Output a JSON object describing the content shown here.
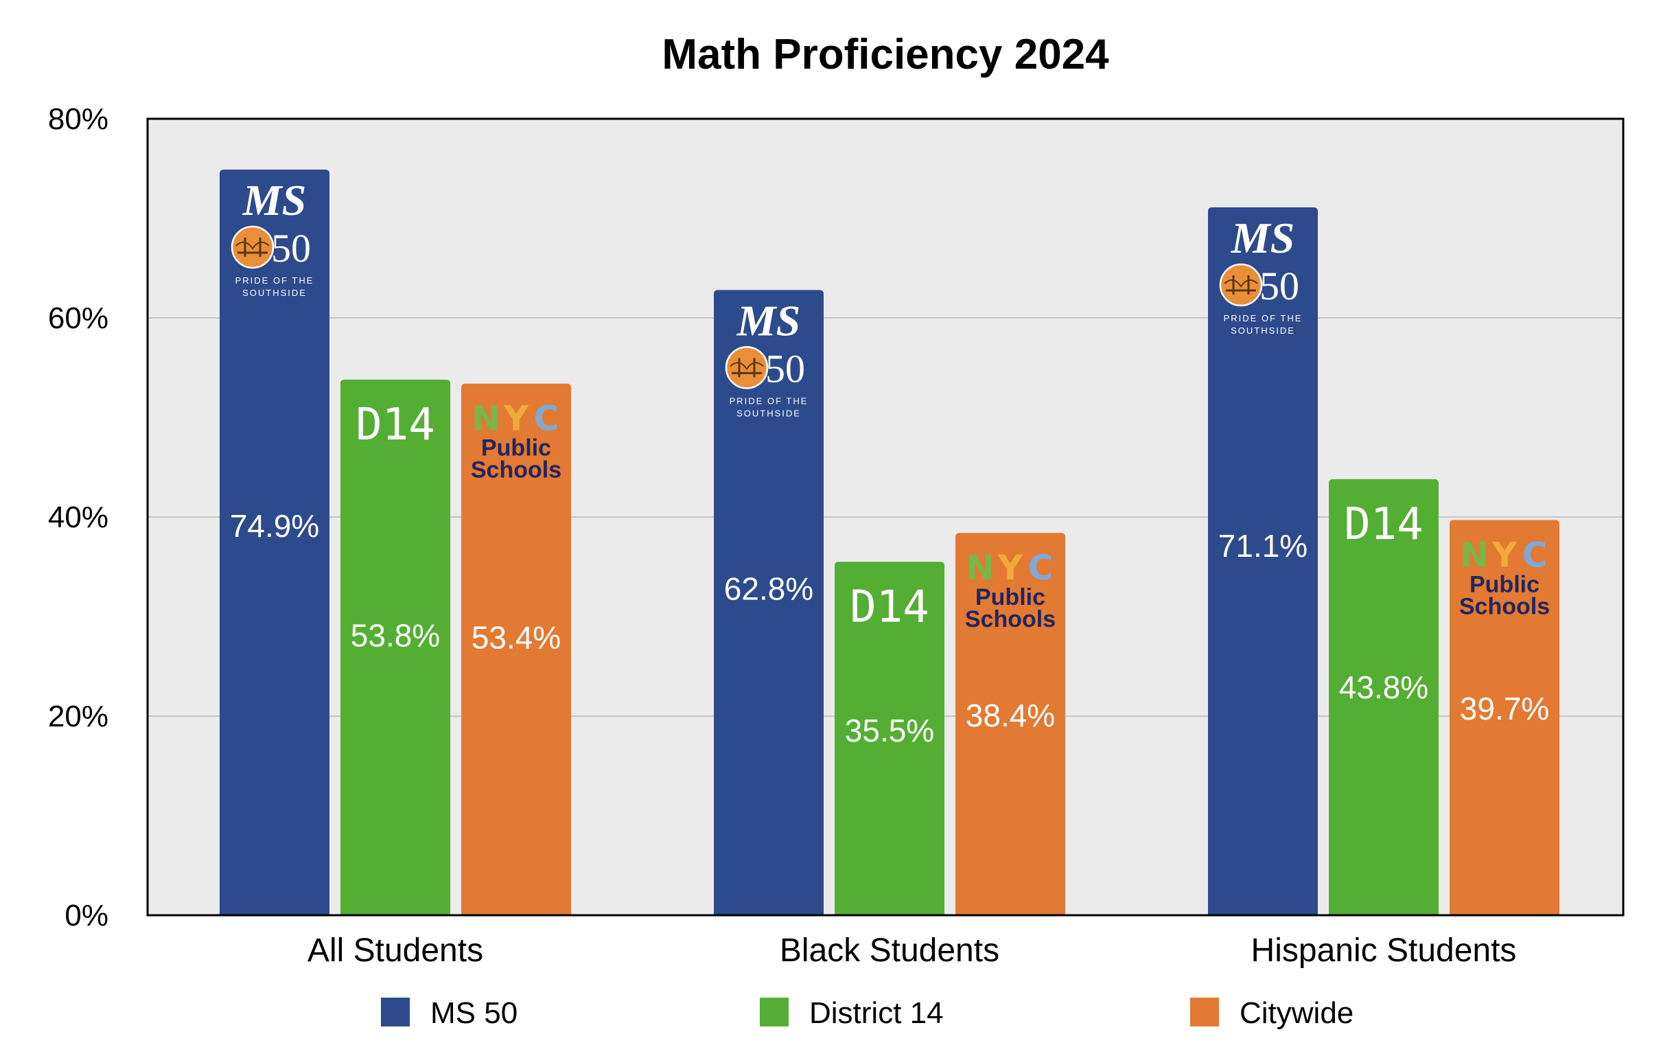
{
  "chart_data": {
    "type": "bar",
    "title": "Math Proficiency 2024",
    "xlabel": "",
    "ylabel": "",
    "ylim": [
      0,
      80
    ],
    "yticks": [
      "0%",
      "20%",
      "40%",
      "60%",
      "80%"
    ],
    "grid": true,
    "legend_position": "bottom",
    "categories": [
      "All Students",
      "Black Students",
      "Hispanic Students"
    ],
    "series": [
      {
        "name": "MS 50",
        "color": "#2d4a8c",
        "values": [
          74.9,
          62.8,
          71.1
        ],
        "labels": [
          "74.9%",
          "62.8%",
          "71.1%"
        ],
        "logo": {
          "kind": "ms50",
          "line1": "MS",
          "line2": "50",
          "tagline_1": "PRIDE OF THE",
          "tagline_2": "SOUTHSIDE"
        }
      },
      {
        "name": "District 14",
        "color": "#55ae34",
        "values": [
          53.8,
          35.5,
          43.8
        ],
        "labels": [
          "53.8%",
          "35.5%",
          "43.8%"
        ],
        "logo": {
          "kind": "d14",
          "line1": "D14"
        }
      },
      {
        "name": "Citywide",
        "color": "#e27a33",
        "values": [
          53.4,
          38.4,
          39.7
        ],
        "labels": [
          "53.4%",
          "38.4%",
          "39.7%"
        ],
        "logo": {
          "kind": "nyc",
          "letters": [
            "N",
            "Y",
            "C"
          ],
          "letter_colors": [
            "#7ab648",
            "#f2a93b",
            "#7fa8d8"
          ],
          "line2": "Public",
          "line3": "Schools"
        }
      }
    ]
  }
}
